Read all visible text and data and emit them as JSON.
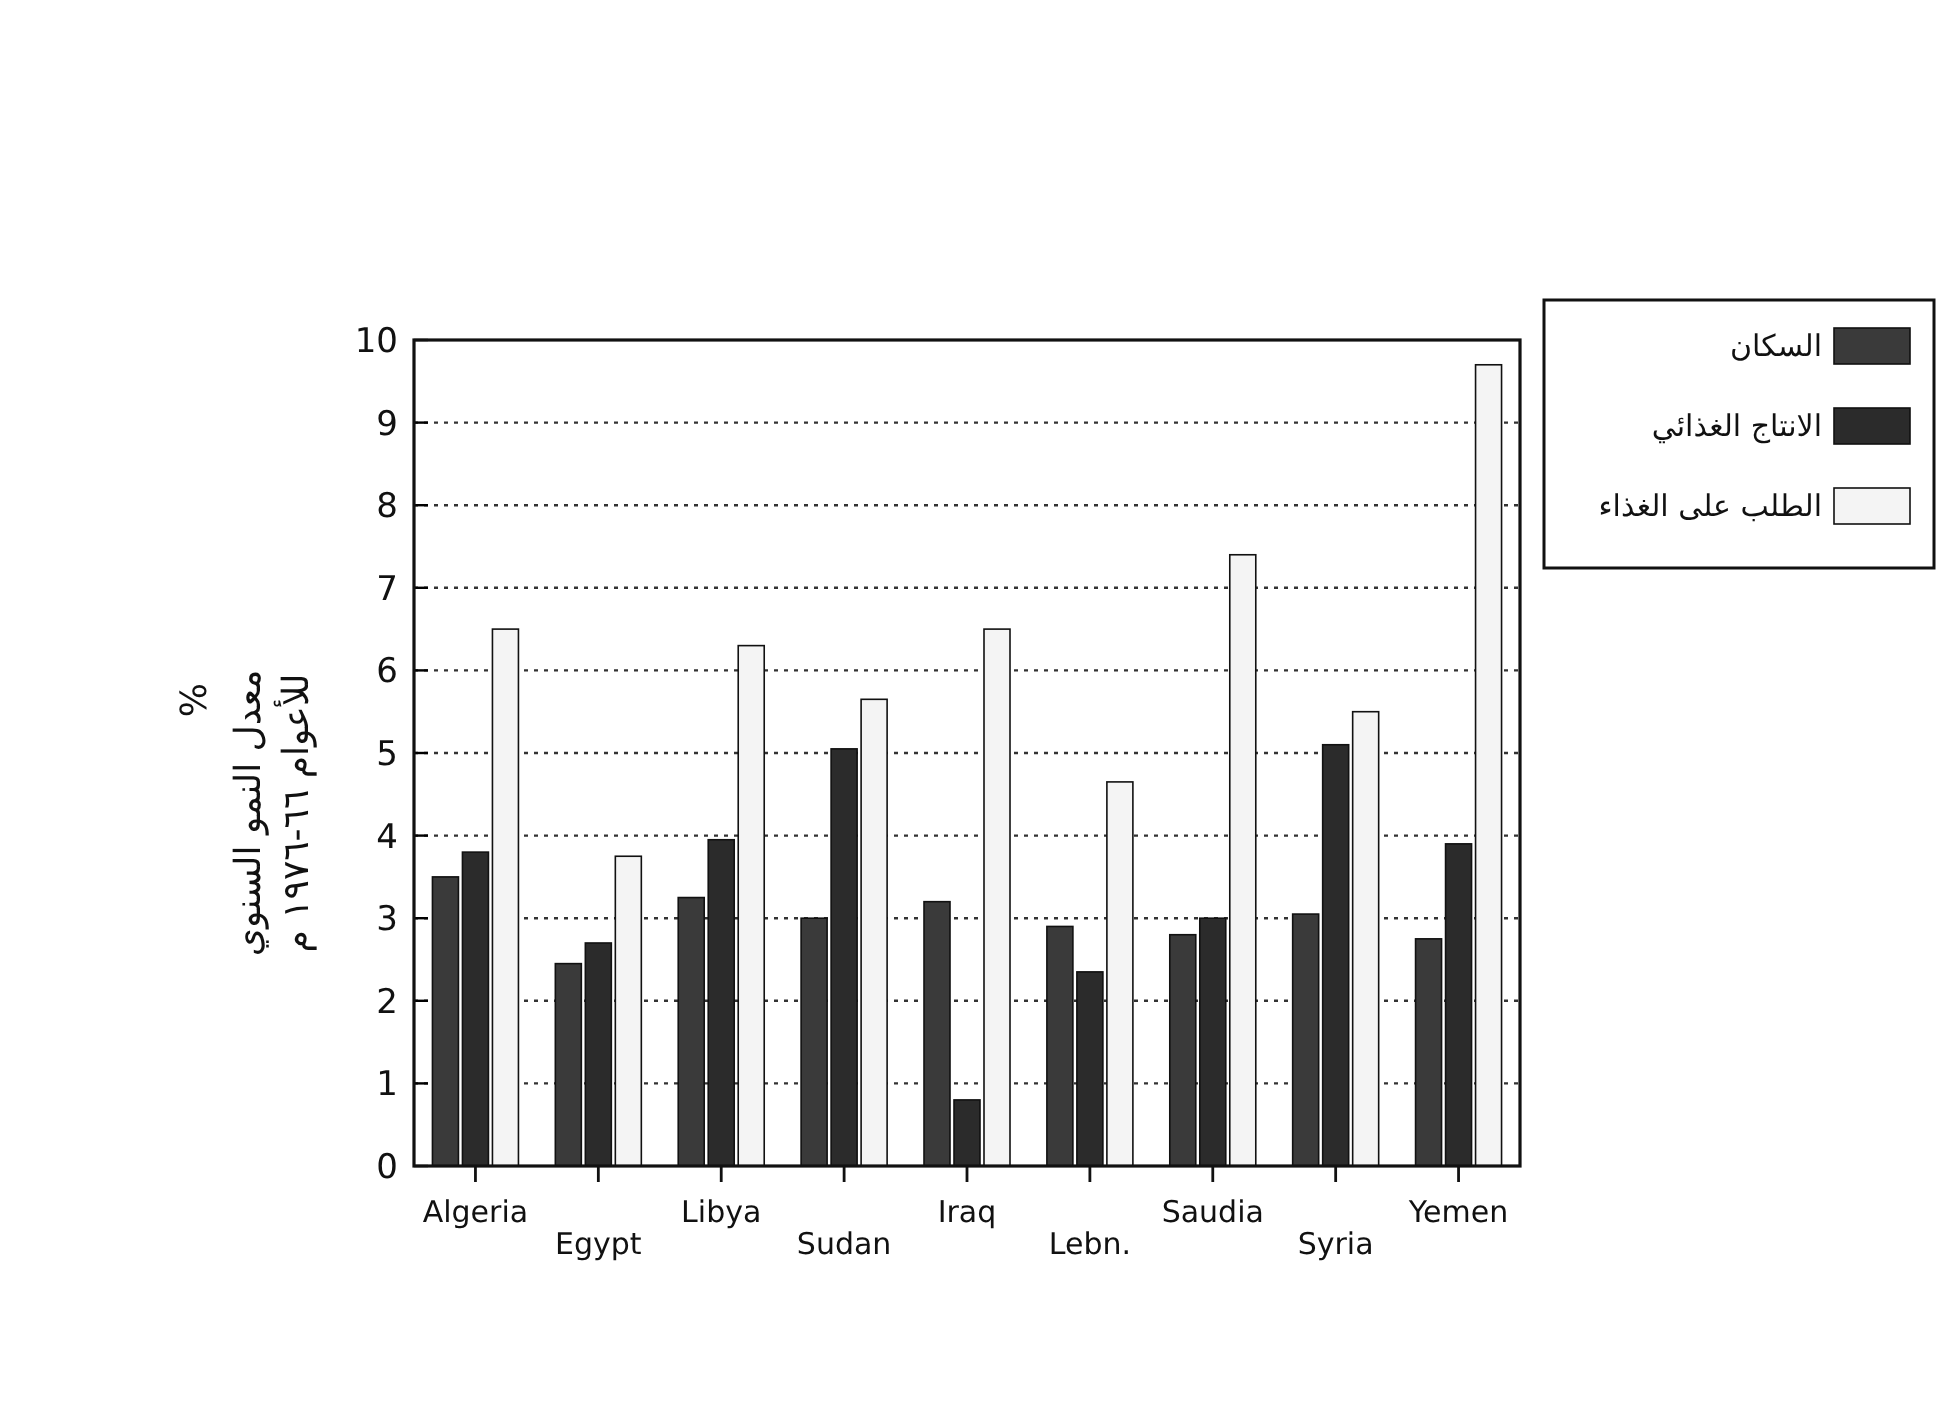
{
  "chart_data": {
    "type": "bar",
    "ylabel": "معدل النمو السنوي للأعوام ٦٦-١٩٧٦ م",
    "annotations": [
      "%"
    ],
    "categories": [
      "Algeria",
      "Egypt",
      "Libya",
      "Sudan",
      "Iraq",
      "Lebn.",
      "Saudia",
      "Syria",
      "Yemen"
    ],
    "series": [
      {
        "name": "السكان",
        "color": "#3a3a3a",
        "values": [
          3.5,
          2.45,
          3.25,
          3.0,
          3.2,
          2.9,
          2.8,
          3.05,
          2.75
        ]
      },
      {
        "name": "الانتاج الغذائي",
        "color": "#2b2b2b",
        "values": [
          3.8,
          2.7,
          3.95,
          5.05,
          0.8,
          2.35,
          3.0,
          5.1,
          3.9
        ]
      },
      {
        "name": "الطلب على الغذاء",
        "color": "#f4f4f4",
        "values": [
          6.5,
          3.75,
          6.3,
          5.65,
          6.5,
          4.65,
          7.4,
          5.5,
          9.7
        ]
      }
    ],
    "ylim": [
      0,
      10
    ],
    "yticks": [
      0,
      1,
      2,
      3,
      4,
      5,
      6,
      7,
      8,
      9,
      10
    ],
    "grid": "y",
    "legend": "right"
  }
}
